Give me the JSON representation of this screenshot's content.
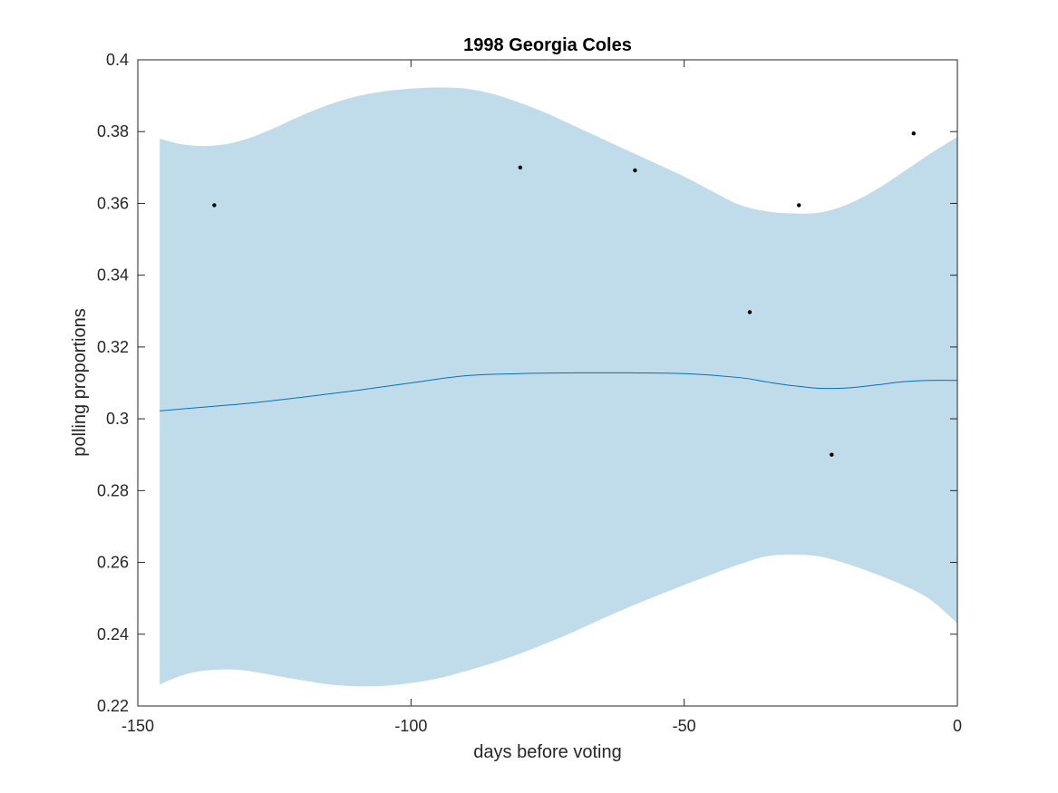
{
  "chart_data": {
    "type": "line",
    "title": "1998 Georgia Coles",
    "xlabel": "days before voting",
    "ylabel": "polling proportions",
    "xlim": [
      -150,
      0
    ],
    "ylim": [
      0.22,
      0.4
    ],
    "xticks": [
      -150,
      -100,
      -50,
      0
    ],
    "xtick_labels": [
      "-150",
      "-100",
      "-50",
      "0"
    ],
    "yticks": [
      0.22,
      0.24,
      0.26,
      0.28,
      0.3,
      0.32,
      0.34,
      0.36,
      0.38,
      0.4
    ],
    "ytick_labels": [
      "0.22",
      "0.24",
      "0.26",
      "0.28",
      "0.3",
      "0.32",
      "0.34",
      "0.36",
      "0.38",
      "0.4"
    ],
    "grid": false,
    "colors": {
      "band": "#c0dcea",
      "line": "#0072bd",
      "points": "#000000",
      "axes": "#262626"
    },
    "band": {
      "x": [
        -146,
        -142,
        -138,
        -134,
        -130,
        -125,
        -120,
        -115,
        -110,
        -105,
        -100,
        -95,
        -90,
        -85,
        -80,
        -75,
        -70,
        -65,
        -60,
        -55,
        -50,
        -45,
        -40,
        -35,
        -30,
        -25,
        -20,
        -15,
        -10,
        -5,
        0
      ],
      "upper": [
        0.378,
        0.3765,
        0.376,
        0.3765,
        0.378,
        0.381,
        0.3845,
        0.3875,
        0.3898,
        0.3912,
        0.392,
        0.3923,
        0.392,
        0.3905,
        0.388,
        0.385,
        0.3815,
        0.378,
        0.3745,
        0.371,
        0.3675,
        0.3635,
        0.3597,
        0.3578,
        0.3572,
        0.3575,
        0.3598,
        0.3637,
        0.3687,
        0.3738,
        0.3785
      ],
      "lower": [
        0.226,
        0.2285,
        0.2298,
        0.2302,
        0.2298,
        0.2285,
        0.2272,
        0.226,
        0.2255,
        0.2256,
        0.2264,
        0.2277,
        0.2297,
        0.232,
        0.2346,
        0.2376,
        0.2408,
        0.2443,
        0.2476,
        0.2507,
        0.2537,
        0.2566,
        0.2594,
        0.2617,
        0.2622,
        0.2616,
        0.2595,
        0.2568,
        0.2537,
        0.2497,
        0.243
      ]
    },
    "series": [
      {
        "x": [
          -146,
          -140,
          -130,
          -120,
          -110,
          -100,
          -90,
          -80,
          -70,
          -60,
          -50,
          -40,
          -35,
          -30,
          -25,
          -20,
          -15,
          -10,
          -5,
          0
        ],
        "values": [
          0.3022,
          0.303,
          0.3043,
          0.306,
          0.3079,
          0.31,
          0.312,
          0.3126,
          0.3128,
          0.3128,
          0.3126,
          0.3115,
          0.3103,
          0.3092,
          0.3085,
          0.3086,
          0.3094,
          0.3103,
          0.3107,
          0.3107
        ]
      }
    ],
    "points": {
      "x": [
        -136,
        -80,
        -59,
        -38,
        -29,
        -23,
        -8
      ],
      "y": [
        0.3595,
        0.37,
        0.3692,
        0.3297,
        0.3595,
        0.29,
        0.3795
      ]
    }
  }
}
